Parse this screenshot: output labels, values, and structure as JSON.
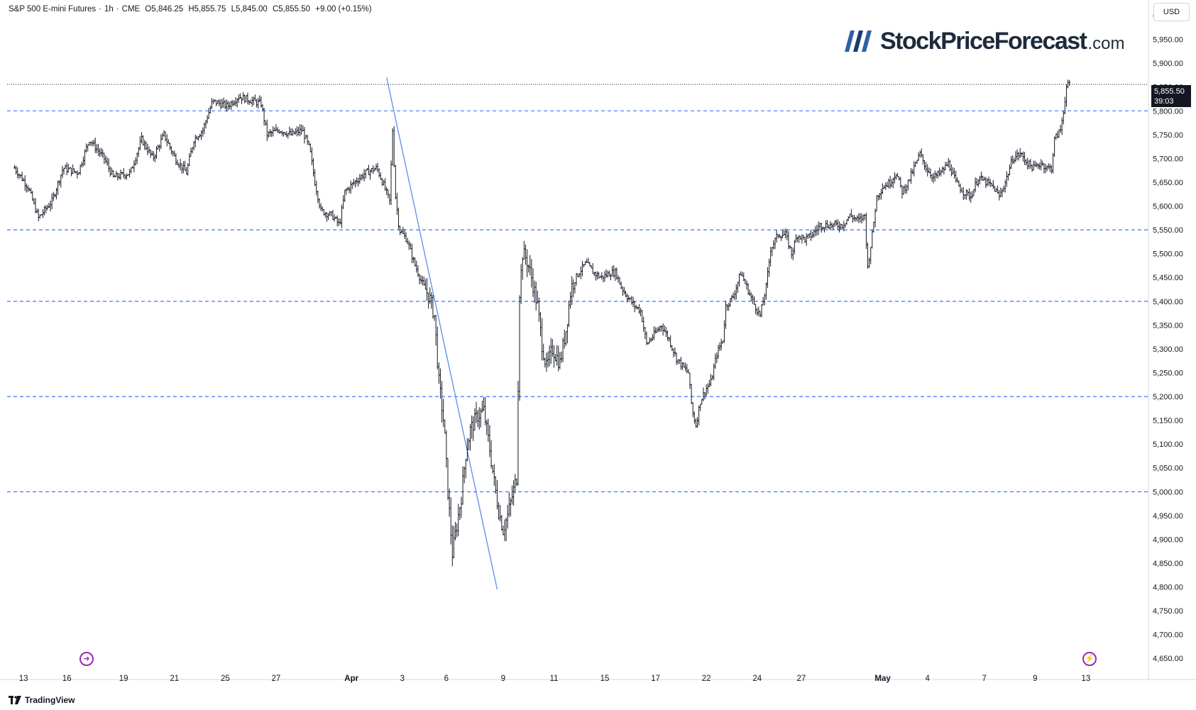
{
  "header": {
    "symbol": "S&P 500 E-mini Futures",
    "interval": "1h",
    "exchange": "CME",
    "open": "O5,846.25",
    "high": "H5,855.75",
    "low": "L5,845.00",
    "close": "C5,855.50",
    "change": "+9.00 (+0.15%)"
  },
  "currency": "USD",
  "logo": {
    "main": "StockPriceForecast",
    "suffix": ".com"
  },
  "price_tag": {
    "price": "5,855.50",
    "timer": "39:03"
  },
  "footer": {
    "brand": "TradingView"
  },
  "colors": {
    "candle": "#131722",
    "level_line": "#2962ff",
    "trend_line": "#5b8def",
    "accent": "#9c27b0"
  },
  "icons": {
    "left_marker": "arrow-circle-icon",
    "right_marker": "lightning-circle-icon"
  },
  "chart_data": {
    "type": "ohlc-bar",
    "title": "S&P 500 E-mini Futures · 1h · CME",
    "ylim": [
      4625,
      6000
    ],
    "y_ticks": [
      4650,
      4700,
      4750,
      4800,
      4850,
      4900,
      4950,
      5000,
      5050,
      5100,
      5150,
      5200,
      5250,
      5300,
      5350,
      5400,
      5450,
      5500,
      5550,
      5600,
      5650,
      5700,
      5750,
      5800,
      5850,
      5900,
      5950,
      6000
    ],
    "y_tick_labels": [
      "4,650.00",
      "4,700.00",
      "4,750.00",
      "4,800.00",
      "4,850.00",
      "4,900.00",
      "4,950.00",
      "5,000.00",
      "5,050.00",
      "5,100.00",
      "5,150.00",
      "5,200.00",
      "5,250.00",
      "5,300.00",
      "5,350.00",
      "5,400.00",
      "5,450.00",
      "5,500.00",
      "5,550.00",
      "5,600.00",
      "5,650.00",
      "5,700.00",
      "5,750.00",
      "5,800.00",
      "5,850.00",
      "5,900.00",
      "5,950.00",
      "6,000.00"
    ],
    "x_range": [
      0,
      1523
    ],
    "x_ticks": [
      {
        "t": 22,
        "label": "13"
      },
      {
        "t": 80,
        "label": "16"
      },
      {
        "t": 156,
        "label": "19"
      },
      {
        "t": 224,
        "label": "21"
      },
      {
        "t": 292,
        "label": "25"
      },
      {
        "t": 360,
        "label": "27"
      },
      {
        "t": 461,
        "label": "Apr"
      },
      {
        "t": 529,
        "label": "3"
      },
      {
        "t": 588,
        "label": "6"
      },
      {
        "t": 664,
        "label": "9"
      },
      {
        "t": 732,
        "label": "11"
      },
      {
        "t": 800,
        "label": "15"
      },
      {
        "t": 868,
        "label": "17"
      },
      {
        "t": 936,
        "label": "22"
      },
      {
        "t": 1004,
        "label": "24"
      },
      {
        "t": 1063,
        "label": "27"
      },
      {
        "t": 1172,
        "label": "May"
      },
      {
        "t": 1232,
        "label": "4"
      },
      {
        "t": 1308,
        "label": "7"
      },
      {
        "t": 1376,
        "label": "9"
      },
      {
        "t": 1444,
        "label": "13"
      }
    ],
    "horizontal_levels": [
      5800,
      5550,
      5400,
      5200,
      5000
    ],
    "last_price_line": 5855.5,
    "trend_line": {
      "t1": 508,
      "p1": 5870,
      "t2": 656,
      "p2": 4795
    },
    "anchors": [
      [
        10,
        5680
      ],
      [
        28,
        5640
      ],
      [
        42,
        5575
      ],
      [
        60,
        5610
      ],
      [
        75,
        5680
      ],
      [
        95,
        5670
      ],
      [
        110,
        5740
      ],
      [
        130,
        5700
      ],
      [
        142,
        5660
      ],
      [
        165,
        5670
      ],
      [
        180,
        5740
      ],
      [
        195,
        5700
      ],
      [
        210,
        5750
      ],
      [
        225,
        5700
      ],
      [
        240,
        5670
      ],
      [
        250,
        5740
      ],
      [
        262,
        5760
      ],
      [
        275,
        5820
      ],
      [
        295,
        5810
      ],
      [
        310,
        5830
      ],
      [
        340,
        5815
      ],
      [
        348,
        5750
      ],
      [
        365,
        5760
      ],
      [
        380,
        5750
      ],
      [
        395,
        5760
      ],
      [
        405,
        5720
      ],
      [
        412,
        5650
      ],
      [
        420,
        5590
      ],
      [
        435,
        5580
      ],
      [
        445,
        5560
      ],
      [
        452,
        5630
      ],
      [
        465,
        5650
      ],
      [
        480,
        5670
      ],
      [
        495,
        5680
      ],
      [
        505,
        5640
      ],
      [
        512,
        5610
      ],
      [
        516,
        5760
      ],
      [
        520,
        5620
      ],
      [
        525,
        5550
      ],
      [
        535,
        5530
      ],
      [
        545,
        5480
      ],
      [
        555,
        5440
      ],
      [
        565,
        5410
      ],
      [
        572,
        5370
      ],
      [
        578,
        5230
      ],
      [
        585,
        5140
      ],
      [
        590,
        5000
      ],
      [
        596,
        4870
      ],
      [
        602,
        4930
      ],
      [
        608,
        4990
      ],
      [
        614,
        5080
      ],
      [
        620,
        5130
      ],
      [
        630,
        5160
      ],
      [
        638,
        5170
      ],
      [
        646,
        5090
      ],
      [
        652,
        5020
      ],
      [
        658,
        4960
      ],
      [
        664,
        4920
      ],
      [
        670,
        4950
      ],
      [
        676,
        4990
      ],
      [
        682,
        5030
      ],
      [
        686,
        5420
      ],
      [
        690,
        5500
      ],
      [
        695,
        5490
      ],
      [
        702,
        5450
      ],
      [
        710,
        5390
      ],
      [
        716,
        5310
      ],
      [
        722,
        5260
      ],
      [
        730,
        5300
      ],
      [
        740,
        5270
      ],
      [
        748,
        5340
      ],
      [
        755,
        5430
      ],
      [
        765,
        5460
      ],
      [
        775,
        5480
      ],
      [
        785,
        5460
      ],
      [
        795,
        5450
      ],
      [
        808,
        5460
      ],
      [
        815,
        5460
      ],
      [
        822,
        5430
      ],
      [
        830,
        5410
      ],
      [
        840,
        5390
      ],
      [
        848,
        5380
      ],
      [
        856,
        5310
      ],
      [
        866,
        5330
      ],
      [
        876,
        5350
      ],
      [
        886,
        5320
      ],
      [
        896,
        5280
      ],
      [
        906,
        5260
      ],
      [
        912,
        5250
      ],
      [
        917,
        5170
      ],
      [
        922,
        5140
      ],
      [
        928,
        5190
      ],
      [
        935,
        5215
      ],
      [
        942,
        5230
      ],
      [
        950,
        5290
      ],
      [
        958,
        5320
      ],
      [
        962,
        5390
      ],
      [
        972,
        5410
      ],
      [
        982,
        5460
      ],
      [
        990,
        5430
      ],
      [
        998,
        5400
      ],
      [
        1008,
        5370
      ],
      [
        1016,
        5430
      ],
      [
        1022,
        5510
      ],
      [
        1032,
        5540
      ],
      [
        1042,
        5540
      ],
      [
        1050,
        5500
      ],
      [
        1058,
        5540
      ],
      [
        1068,
        5530
      ],
      [
        1078,
        5540
      ],
      [
        1088,
        5560
      ],
      [
        1098,
        5560
      ],
      [
        1108,
        5560
      ],
      [
        1118,
        5560
      ],
      [
        1128,
        5580
      ],
      [
        1140,
        5570
      ],
      [
        1148,
        5580
      ],
      [
        1152,
        5470
      ],
      [
        1158,
        5540
      ],
      [
        1164,
        5620
      ],
      [
        1172,
        5640
      ],
      [
        1182,
        5650
      ],
      [
        1190,
        5670
      ],
      [
        1198,
        5630
      ],
      [
        1206,
        5650
      ],
      [
        1214,
        5680
      ],
      [
        1222,
        5710
      ],
      [
        1230,
        5680
      ],
      [
        1240,
        5660
      ],
      [
        1250,
        5670
      ],
      [
        1260,
        5690
      ],
      [
        1270,
        5650
      ],
      [
        1280,
        5630
      ],
      [
        1290,
        5620
      ],
      [
        1300,
        5660
      ],
      [
        1310,
        5650
      ],
      [
        1320,
        5640
      ],
      [
        1328,
        5620
      ],
      [
        1336,
        5650
      ],
      [
        1346,
        5700
      ],
      [
        1356,
        5710
      ],
      [
        1366,
        5690
      ],
      [
        1374,
        5680
      ],
      [
        1384,
        5690
      ],
      [
        1392,
        5680
      ],
      [
        1398,
        5680
      ],
      [
        1402,
        5740
      ],
      [
        1410,
        5760
      ],
      [
        1414,
        5800
      ],
      [
        1418,
        5850
      ],
      [
        1422,
        5855
      ]
    ]
  }
}
